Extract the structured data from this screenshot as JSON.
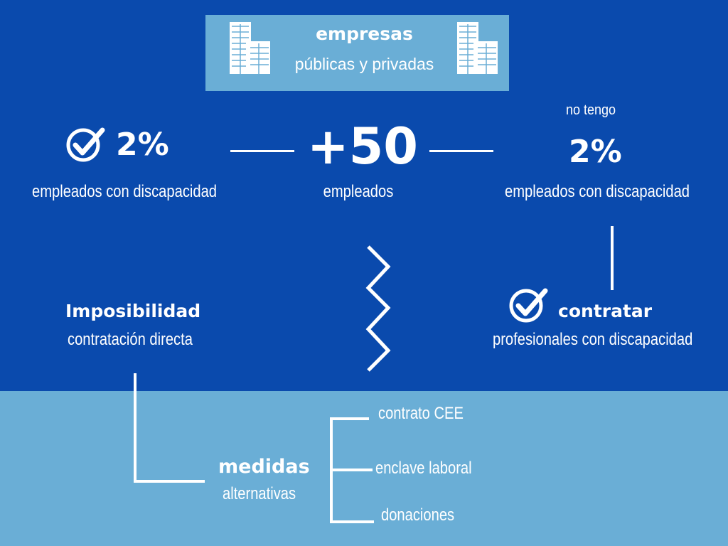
{
  "header": {
    "title": "empresas",
    "subtitle": "públicas y privadas",
    "icons": [
      "buildings-icon",
      "buildings-icon"
    ]
  },
  "left": {
    "value": "2%",
    "label": "empleados con discapacidad",
    "icon": "check-circle-icon"
  },
  "center": {
    "value": "+50",
    "label": "empleados"
  },
  "right": {
    "prefix": "no tengo",
    "value": "2%",
    "label": "empleados con discapacidad"
  },
  "impossibility": {
    "title": "Imposibilidad",
    "subtitle": "contratación directa"
  },
  "hire": {
    "title": "contratar",
    "subtitle": "profesionales con discapacidad",
    "icon": "check-circle-icon"
  },
  "measures": {
    "title": "medidas",
    "subtitle": "alternativas",
    "items": [
      "contrato CEE",
      "enclave laboral",
      "donaciones"
    ]
  },
  "colors": {
    "background": "#0a4aad",
    "panel": "#6aaed6",
    "text": "#ffffff"
  }
}
